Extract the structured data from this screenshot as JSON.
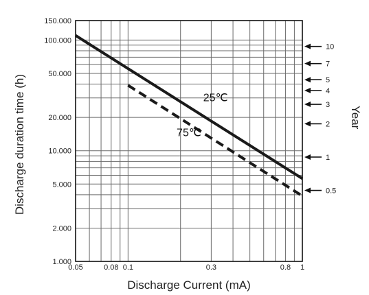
{
  "chart_data": {
    "type": "line",
    "xlabel": "Discharge Current (mA)",
    "ylabel": "Discharge duration time (h)",
    "y2label": "Year",
    "x_scale": "log",
    "y_scale": "log",
    "xlim": [
      0.05,
      1
    ],
    "ylim": [
      1000,
      150000
    ],
    "x_ticks": [
      {
        "value": 0.05,
        "label": "0.05"
      },
      {
        "value": 0.08,
        "label": "0.08"
      },
      {
        "value": 0.1,
        "label": "0.1"
      },
      {
        "value": 0.3,
        "label": "0.3"
      },
      {
        "value": 0.8,
        "label": "0.8"
      },
      {
        "value": 1,
        "label": "1"
      }
    ],
    "y_ticks": [
      {
        "value": 150000,
        "label": "150.000"
      },
      {
        "value": 100000,
        "label": "100.000"
      },
      {
        "value": 50000,
        "label": "50.000"
      },
      {
        "value": 20000,
        "label": "20.000"
      },
      {
        "value": 10000,
        "label": "10.000"
      },
      {
        "value": 5000,
        "label": "5.000"
      },
      {
        "value": 2000,
        "label": "2.000"
      },
      {
        "value": 1000,
        "label": "1.000"
      }
    ],
    "x_minor_grid": [
      0.06,
      0.07,
      0.09,
      0.2,
      0.4,
      0.5,
      0.6,
      0.7,
      0.9
    ],
    "y_minor_grid": [
      3000,
      4000,
      6000,
      7000,
      8000,
      9000,
      30000,
      40000,
      60000,
      70000,
      80000,
      90000
    ],
    "year_markers": [
      {
        "value": 87600,
        "label": "10"
      },
      {
        "value": 61320,
        "label": "7"
      },
      {
        "value": 43800,
        "label": "5"
      },
      {
        "value": 35040,
        "label": "4"
      },
      {
        "value": 26280,
        "label": "3"
      },
      {
        "value": 17520,
        "label": "2"
      },
      {
        "value": 8760,
        "label": "1"
      },
      {
        "value": 4380,
        "label": "0.5"
      }
    ],
    "series": [
      {
        "name": "25℃",
        "style": "solid",
        "x": [
          0.05,
          1
        ],
        "y": [
          110000,
          5600
        ],
        "label_at": [
          0.27,
          28000
        ]
      },
      {
        "name": "75℃",
        "style": "dashed",
        "x": [
          0.1,
          1
        ],
        "y": [
          39000,
          3900
        ],
        "label_at": [
          0.19,
          13500
        ]
      }
    ],
    "grid": true,
    "colors": {
      "line": "#1a1a1a",
      "grid": "#6a6a6a",
      "frame": "#111111"
    }
  }
}
